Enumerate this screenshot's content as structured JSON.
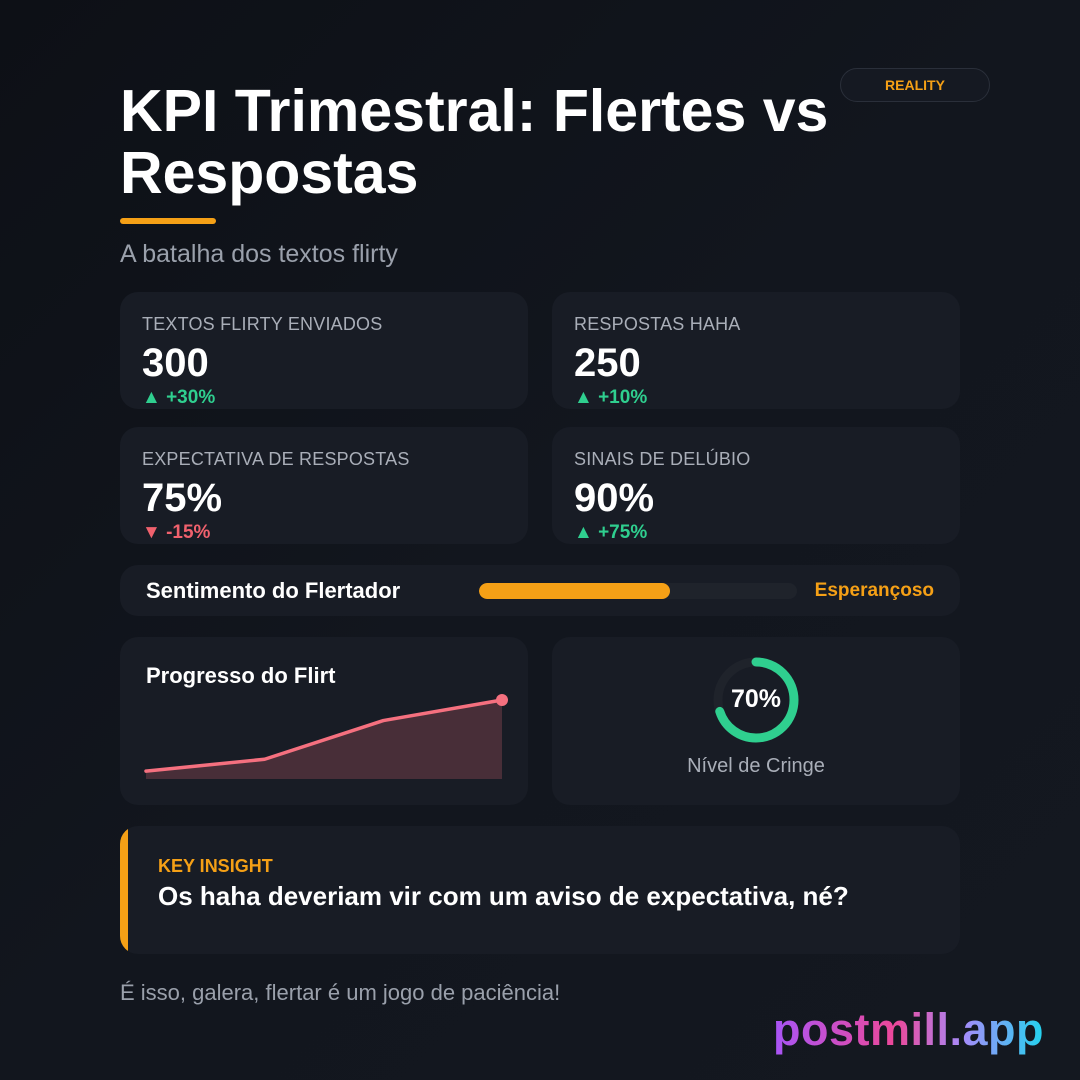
{
  "badge": "REALITY",
  "title": "KPI Trimestral: Flertes vs Respostas",
  "subtitle": "A batalha dos textos flirty",
  "colors": {
    "accent": "#f5a016",
    "positive": "#2fcf8f",
    "negative": "#f0616d",
    "line": "#f5707f"
  },
  "kpis": [
    {
      "label": "TEXTOS FLIRTY ENVIADOS",
      "value": "300",
      "delta": "▲ +30%",
      "trend": "up"
    },
    {
      "label": "RESPOSTAS HAHA",
      "value": "250",
      "delta": "▲ +10%",
      "trend": "up"
    },
    {
      "label": "EXPECTATIVA DE RESPOSTAS",
      "value": "75%",
      "delta": "▼ -15%",
      "trend": "down"
    },
    {
      "label": "SINAIS DE DELÚBIO",
      "value": "90%",
      "delta": "▲ +75%",
      "trend": "up"
    }
  ],
  "sentiment": {
    "label": "Sentimento do Flertador",
    "value": "Esperançoso",
    "level": 0.6
  },
  "progress_chart": {
    "title": "Progresso do Flirt"
  },
  "chart_data": {
    "type": "area",
    "x": [
      1,
      2,
      3,
      4
    ],
    "values": [
      10,
      25,
      74,
      100
    ],
    "ylim": [
      0,
      100
    ]
  },
  "donut": {
    "value_text": "70%",
    "value": 0.7,
    "label": "Nível de Cringe"
  },
  "insight": {
    "tag": "KEY INSIGHT",
    "text": "Os haha deveriam vir com um aviso de expectativa, né?"
  },
  "footer": "É isso, galera, flertar é um jogo de paciência!",
  "brand": "postmill.app"
}
